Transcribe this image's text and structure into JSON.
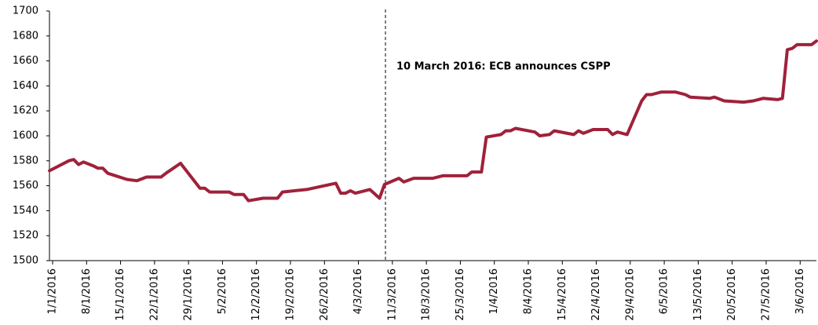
{
  "chart_data": {
    "type": "line",
    "annotation": "10 March 2016: ECB announces CSPP",
    "x": [
      "1/1/2016",
      "5/1/2016",
      "6/1/2016",
      "7/1/2016",
      "8/1/2016",
      "10/1/2016",
      "11/1/2016",
      "12/1/2016",
      "13/1/2016",
      "17/1/2016",
      "19/1/2016",
      "21/1/2016",
      "24/1/2016",
      "25/1/2016",
      "28/1/2016",
      "1/2/2016",
      "2/2/2016",
      "3/2/2016",
      "7/2/2016",
      "8/2/2016",
      "10/2/2016",
      "11/2/2016",
      "14/2/2016",
      "15/2/2016",
      "17/2/2016",
      "18/2/2016",
      "23/2/2016",
      "29/2/2016",
      "1/3/2016",
      "2/3/2016",
      "3/3/2016",
      "4/3/2016",
      "7/3/2016",
      "9/3/2016",
      "10/3/2016",
      "13/3/2016",
      "14/3/2016",
      "16/3/2016",
      "20/3/2016",
      "22/3/2016",
      "27/3/2016",
      "28/3/2016",
      "30/3/2016",
      "31/3/2016",
      "3/4/2016",
      "4/4/2016",
      "5/4/2016",
      "6/4/2016",
      "10/4/2016",
      "11/4/2016",
      "13/4/2016",
      "14/4/2016",
      "18/4/2016",
      "19/4/2016",
      "20/4/2016",
      "22/4/2016",
      "25/4/2016",
      "26/4/2016",
      "27/4/2016",
      "29/4/2016",
      "2/5/2016",
      "3/5/2016",
      "4/5/2016",
      "6/5/2016",
      "9/5/2016",
      "11/5/2016",
      "12/5/2016",
      "16/5/2016",
      "17/5/2016",
      "19/5/2016",
      "23/5/2016",
      "25/5/2016",
      "26/5/2016",
      "27/5/2016",
      "30/5/2016",
      "31/5/2016",
      "1/6/2016",
      "2/6/2016",
      "3/6/2016",
      "6/6/2016",
      "7/6/2016"
    ],
    "series": [
      {
        "color": "#a0213a",
        "values": [
          1572,
          1580,
          1581,
          1577,
          1579,
          1576,
          1574,
          1574,
          1570,
          1565,
          1564,
          1567,
          1567,
          1570,
          1578,
          1558,
          1558,
          1555,
          1555,
          1553,
          1553,
          1548,
          1550,
          1550,
          1550,
          1555,
          1557,
          1562,
          1554,
          1554,
          1556,
          1554,
          1557,
          1550,
          1561,
          1566,
          1563,
          1566,
          1566,
          1568,
          1568,
          1571,
          1571,
          1599,
          1601,
          1604,
          1604,
          1606,
          1603,
          1600,
          1601,
          1604,
          1601,
          1604,
          1602,
          1605,
          1605,
          1601,
          1603,
          1601,
          1628,
          1633,
          1633,
          1635,
          1635,
          1633,
          1631,
          1630,
          1631,
          1628,
          1627,
          1628,
          1629,
          1630,
          1629,
          1630,
          1669,
          1670,
          1673,
          1673,
          1676
        ]
      }
    ],
    "xlim": [
      "1/1/2016",
      "7/6/2016"
    ],
    "xticks": [
      "1/1/2016",
      "8/1/2016",
      "15/1/2016",
      "22/1/2016",
      "29/1/2016",
      "5/2/2016",
      "12/2/2016",
      "19/2/2016",
      "26/2/2016",
      "4/3/2016",
      "11/3/2016",
      "18/3/2016",
      "25/3/2016",
      "1/4/2016",
      "8/4/2016",
      "15/4/2016",
      "22/4/2016",
      "29/4/2016",
      "6/5/2016",
      "13/5/2016",
      "20/5/2016",
      "27/5/2016",
      "3/6/2016"
    ],
    "ylim": [
      1500,
      1700
    ],
    "yticks": [
      1500,
      1520,
      1540,
      1560,
      1580,
      1600,
      1620,
      1640,
      1660,
      1680,
      1700
    ]
  }
}
